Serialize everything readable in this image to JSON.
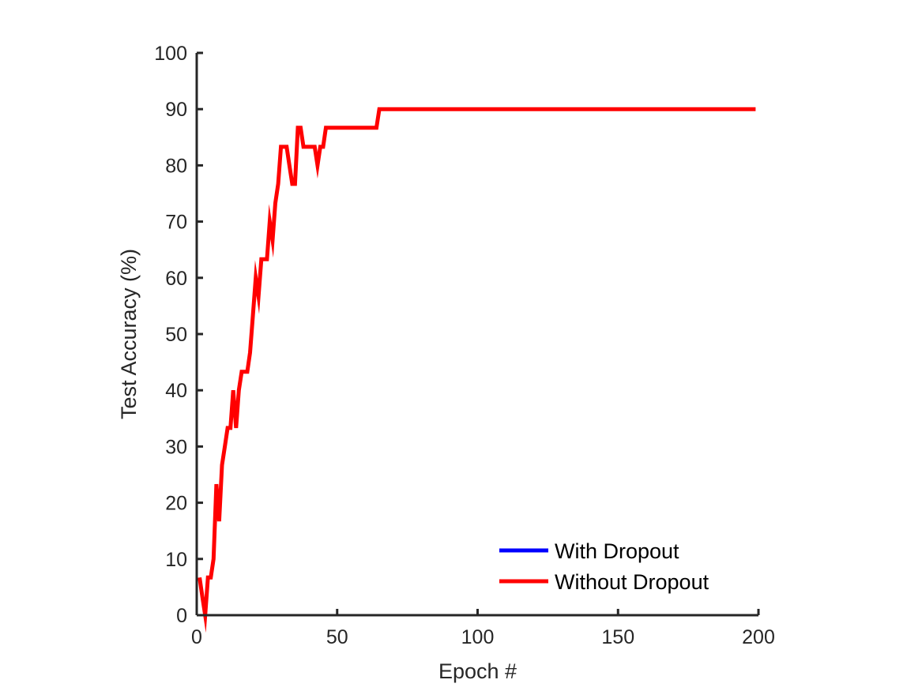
{
  "chart_data": {
    "type": "line",
    "title": "",
    "xlabel": "Epoch #",
    "ylabel": "Test Accuracy (%)",
    "xlim": [
      0,
      200
    ],
    "ylim": [
      0,
      100
    ],
    "xticks": [
      0,
      50,
      100,
      150,
      200
    ],
    "yticks": [
      0,
      10,
      20,
      30,
      40,
      50,
      60,
      70,
      80,
      90,
      100
    ],
    "grid": false,
    "legend_position": "bottom-right",
    "series": [
      {
        "name": "With Dropout",
        "color": "#0000ff",
        "x": [],
        "y": []
      },
      {
        "name": "Without Dropout",
        "color": "#ff0000",
        "x": [
          1,
          2,
          3,
          4,
          5,
          6,
          7,
          8,
          9,
          10,
          11,
          12,
          13,
          14,
          15,
          16,
          17,
          18,
          19,
          20,
          21,
          22,
          23,
          24,
          25,
          26,
          27,
          28,
          29,
          30,
          31,
          32,
          33,
          34,
          35,
          36,
          37,
          38,
          39,
          40,
          41,
          42,
          43,
          44,
          45,
          46,
          47,
          48,
          49,
          50,
          51,
          52,
          53,
          54,
          55,
          56,
          57,
          58,
          59,
          60,
          61,
          62,
          63,
          64,
          65,
          66,
          70,
          80,
          90,
          100,
          110,
          120,
          130,
          140,
          150,
          160,
          170,
          180,
          190,
          199
        ],
        "y": [
          6.7,
          3.3,
          0,
          6.7,
          6.7,
          10,
          23.3,
          16.7,
          26.7,
          30,
          33.3,
          33.3,
          40,
          33.3,
          40,
          43.3,
          43.3,
          43.3,
          46.7,
          53.3,
          60,
          56.7,
          63.3,
          63.3,
          63.3,
          70,
          66.7,
          73.3,
          76.7,
          83.3,
          83.3,
          83.3,
          80,
          76.7,
          76.7,
          86.7,
          86.7,
          83.3,
          83.3,
          83.3,
          83.3,
          83.3,
          80,
          83.3,
          83.3,
          86.7,
          86.7,
          86.7,
          86.7,
          86.7,
          86.7,
          86.7,
          86.7,
          86.7,
          86.7,
          86.7,
          86.7,
          86.7,
          86.7,
          86.7,
          86.7,
          86.7,
          86.7,
          86.7,
          90,
          90,
          90,
          90,
          90,
          90,
          90,
          90,
          90,
          90,
          90,
          90,
          90,
          90,
          90,
          90
        ]
      }
    ]
  }
}
